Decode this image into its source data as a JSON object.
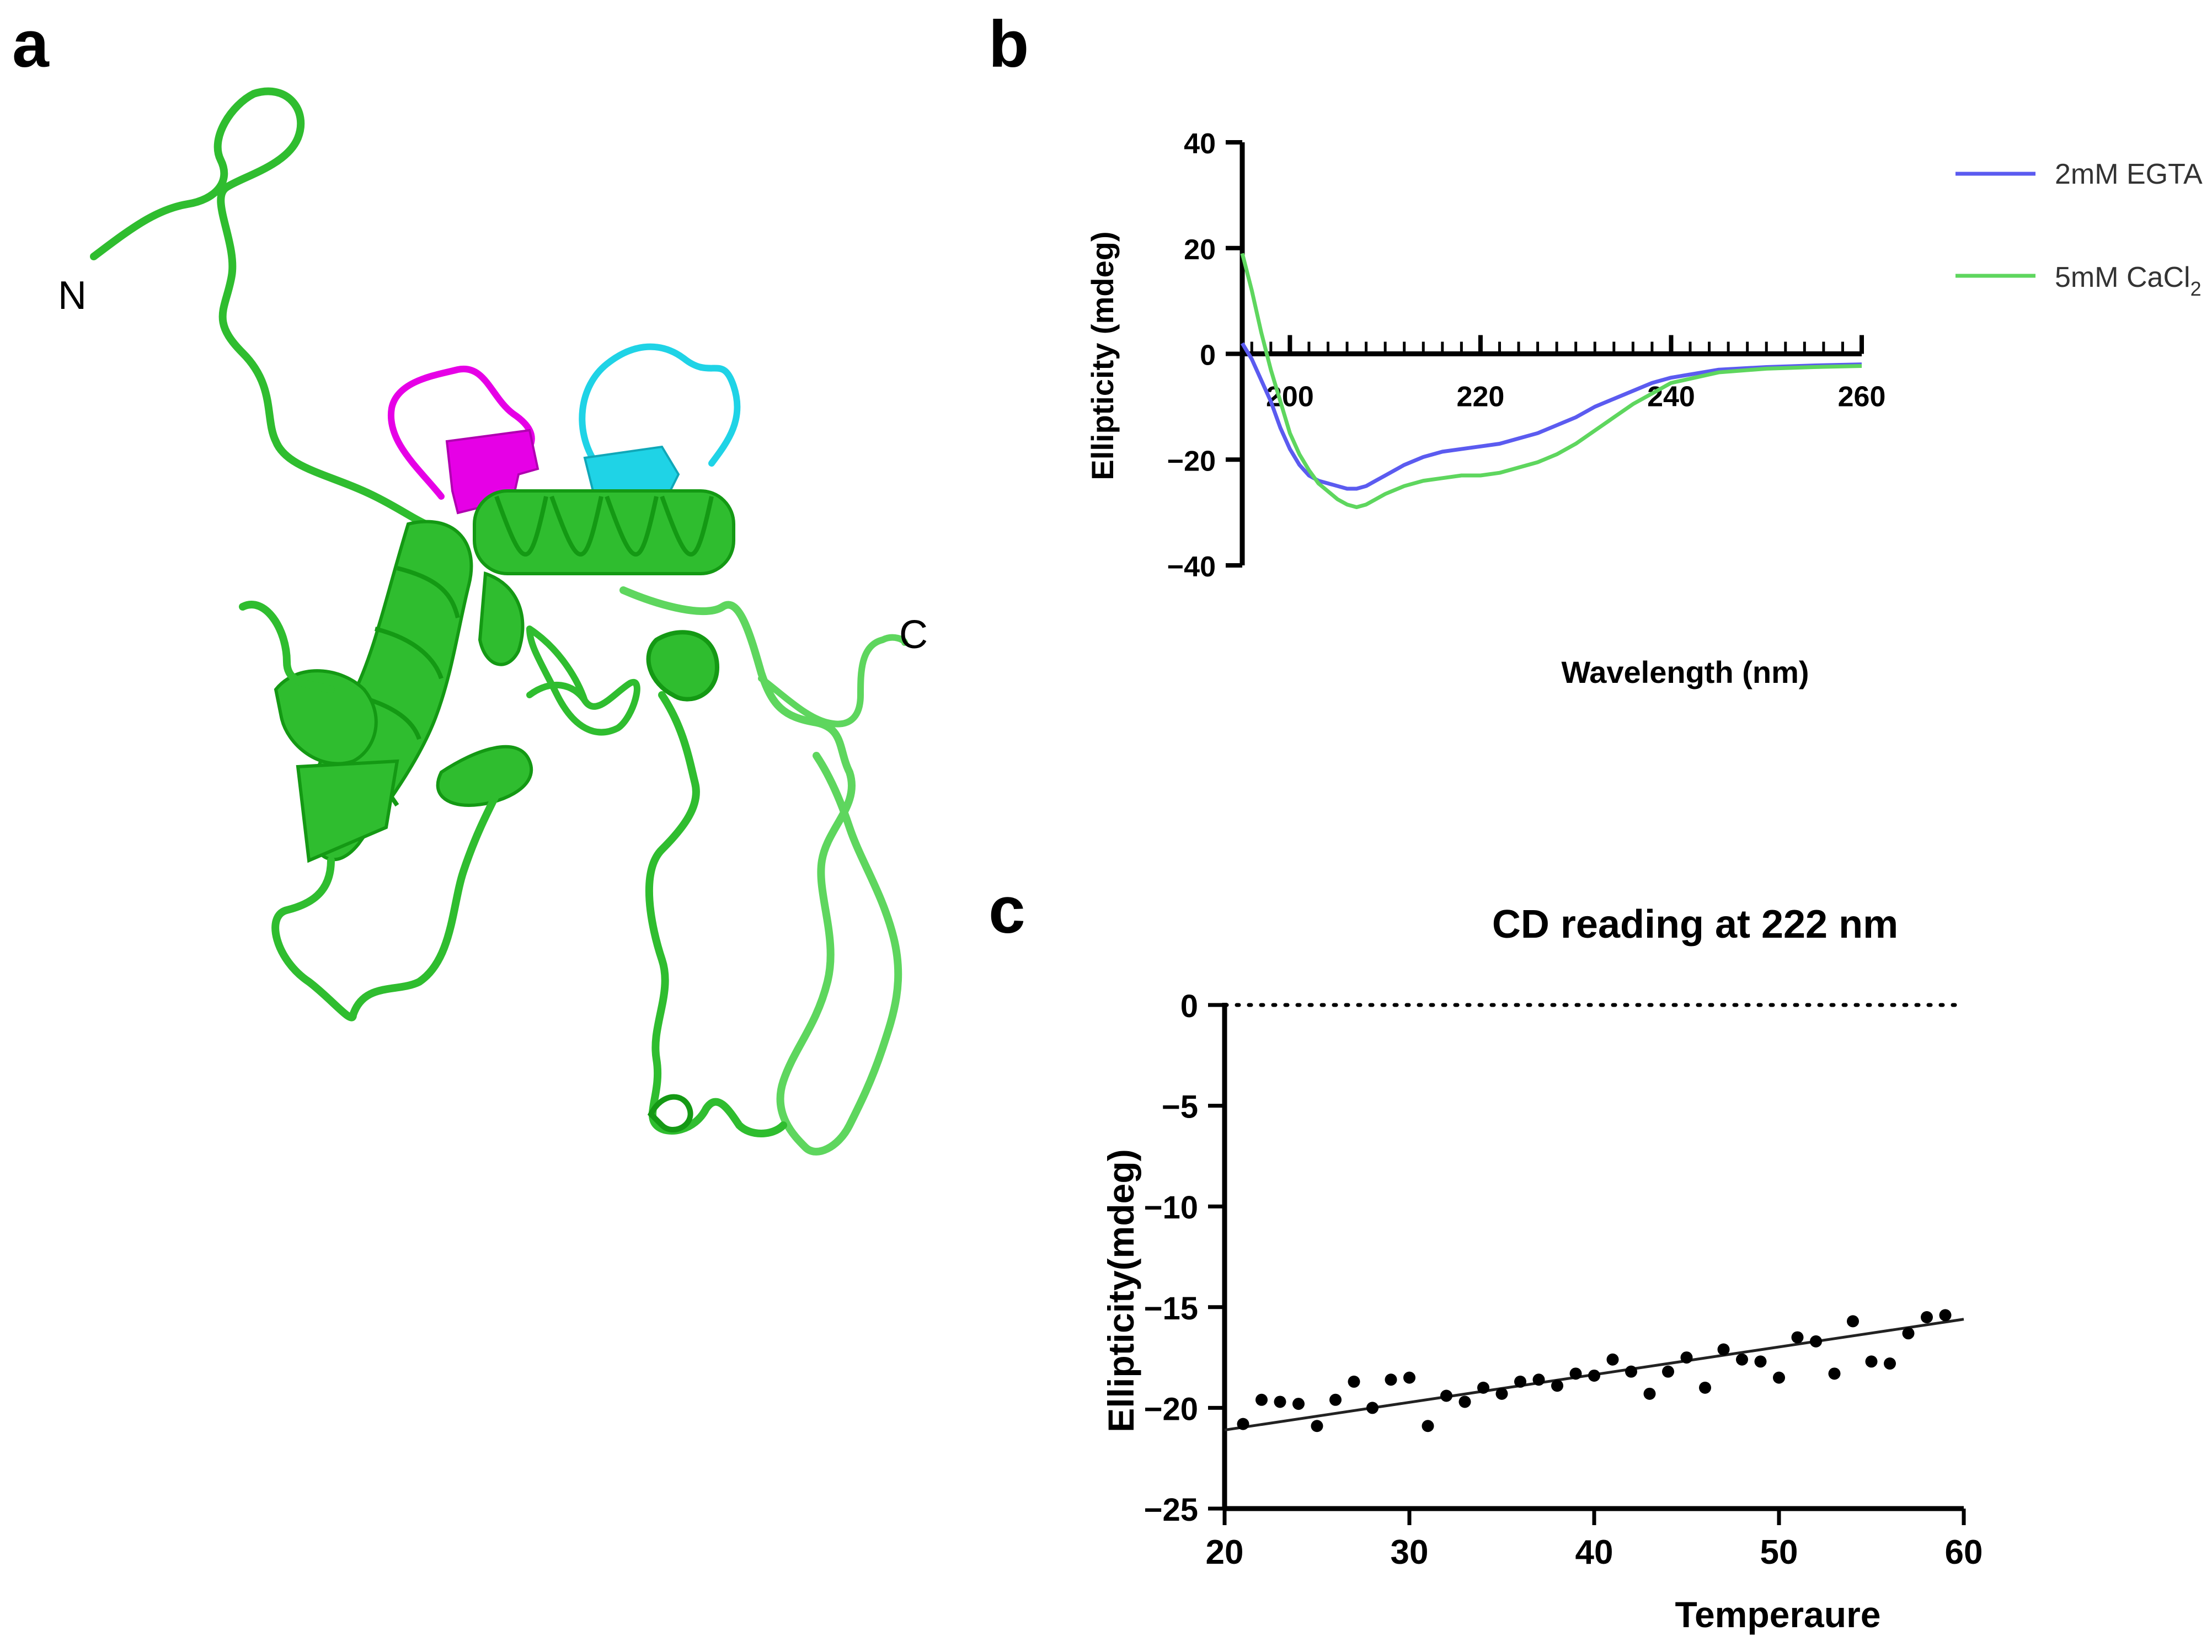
{
  "panels": {
    "a": {
      "letter": "a",
      "n_label": "N",
      "c_label": "C",
      "colors": {
        "chain": "#2fbd2f",
        "chain_dark": "#149914",
        "helix_magenta": "#e600e6",
        "helix_cyan": "#1fd3e6"
      }
    },
    "b": {
      "letter": "b"
    },
    "c": {
      "letter": "c"
    }
  },
  "chart_data": [
    {
      "id": "b",
      "type": "line",
      "title": "",
      "xlabel": "Wavelength (nm)",
      "ylabel": "Ellipticity (mdeg)",
      "xlim": [
        195,
        260
      ],
      "ylim": [
        -40,
        40
      ],
      "xticks": [
        200,
        220,
        240,
        260
      ],
      "yticks": [
        40,
        20,
        0,
        -20,
        -40
      ],
      "legend_position": "top-right",
      "series": [
        {
          "name": "2mM EGTA",
          "name_main": "2mM EGTA",
          "color": "#5b5bf0",
          "x": [
            195,
            196,
            197,
            198,
            199,
            200,
            201,
            202,
            203,
            204,
            205,
            206,
            207,
            208,
            209,
            210,
            212,
            214,
            216,
            218,
            220,
            222,
            224,
            226,
            228,
            230,
            232,
            234,
            236,
            238,
            240,
            245,
            250,
            255,
            260
          ],
          "y": [
            2,
            -1,
            -5,
            -9,
            -14,
            -18,
            -21,
            -23,
            -24,
            -24.5,
            -25,
            -25.5,
            -25.5,
            -25,
            -24,
            -23,
            -21,
            -19.5,
            -18.5,
            -18,
            -17.5,
            -17,
            -16,
            -15,
            -13.5,
            -12,
            -10,
            -8.5,
            -7,
            -5.5,
            -4.5,
            -3,
            -2.5,
            -2.2,
            -2
          ]
        },
        {
          "name": "5mM CaCl2",
          "name_main": "5mM CaCl",
          "name_sub": "2",
          "color": "#5ed65e",
          "x": [
            195,
            196,
            197,
            198,
            199,
            200,
            201,
            202,
            203,
            204,
            205,
            206,
            207,
            208,
            209,
            210,
            212,
            214,
            216,
            218,
            220,
            222,
            224,
            226,
            228,
            230,
            232,
            234,
            236,
            238,
            240,
            245,
            250,
            255,
            260
          ],
          "y": [
            19,
            12,
            4,
            -3,
            -9,
            -15,
            -19,
            -22,
            -24.5,
            -26,
            -27.5,
            -28.5,
            -29,
            -28.5,
            -27.5,
            -26.5,
            -25,
            -24,
            -23.5,
            -23,
            -23,
            -22.5,
            -21.5,
            -20.5,
            -19,
            -17,
            -14.5,
            -12,
            -9.5,
            -7.5,
            -5.5,
            -3.5,
            -2.8,
            -2.5,
            -2.3
          ]
        }
      ]
    },
    {
      "id": "c",
      "type": "scatter",
      "title": "CD reading at 222 nm",
      "xlabel": "Temperaure",
      "ylabel": "Ellipticity(mdeg)",
      "xlim": [
        20,
        60
      ],
      "ylim": [
        -25,
        0
      ],
      "xticks": [
        20,
        30,
        40,
        50,
        60
      ],
      "yticks": [
        0,
        -5,
        -10,
        -15,
        -20,
        -25
      ],
      "reference_line_y": 0,
      "points": {
        "x": [
          21,
          22,
          23,
          24,
          25,
          26,
          27,
          28,
          29,
          30,
          31,
          32,
          33,
          34,
          35,
          36,
          37,
          38,
          39,
          40,
          41,
          42,
          43,
          44,
          45,
          46,
          47,
          48,
          49,
          50,
          51,
          52,
          53,
          54,
          55,
          56,
          57,
          58,
          59
        ],
        "y": [
          -20.8,
          -19.6,
          -19.7,
          -19.8,
          -20.9,
          -19.6,
          -18.7,
          -20.0,
          -18.6,
          -18.5,
          -20.9,
          -19.4,
          -19.7,
          -19.0,
          -19.3,
          -18.7,
          -18.6,
          -18.9,
          -18.3,
          -18.4,
          -17.6,
          -18.2,
          -19.3,
          -18.2,
          -17.5,
          -19.0,
          -17.1,
          -17.6,
          -17.7,
          -18.5,
          -16.5,
          -16.7,
          -18.3,
          -15.7,
          -17.7,
          -17.8,
          -16.3,
          -15.5,
          -15.4
        ]
      },
      "fit_line": {
        "x": [
          20,
          60
        ],
        "y": [
          -21.1,
          -15.6
        ]
      }
    }
  ]
}
